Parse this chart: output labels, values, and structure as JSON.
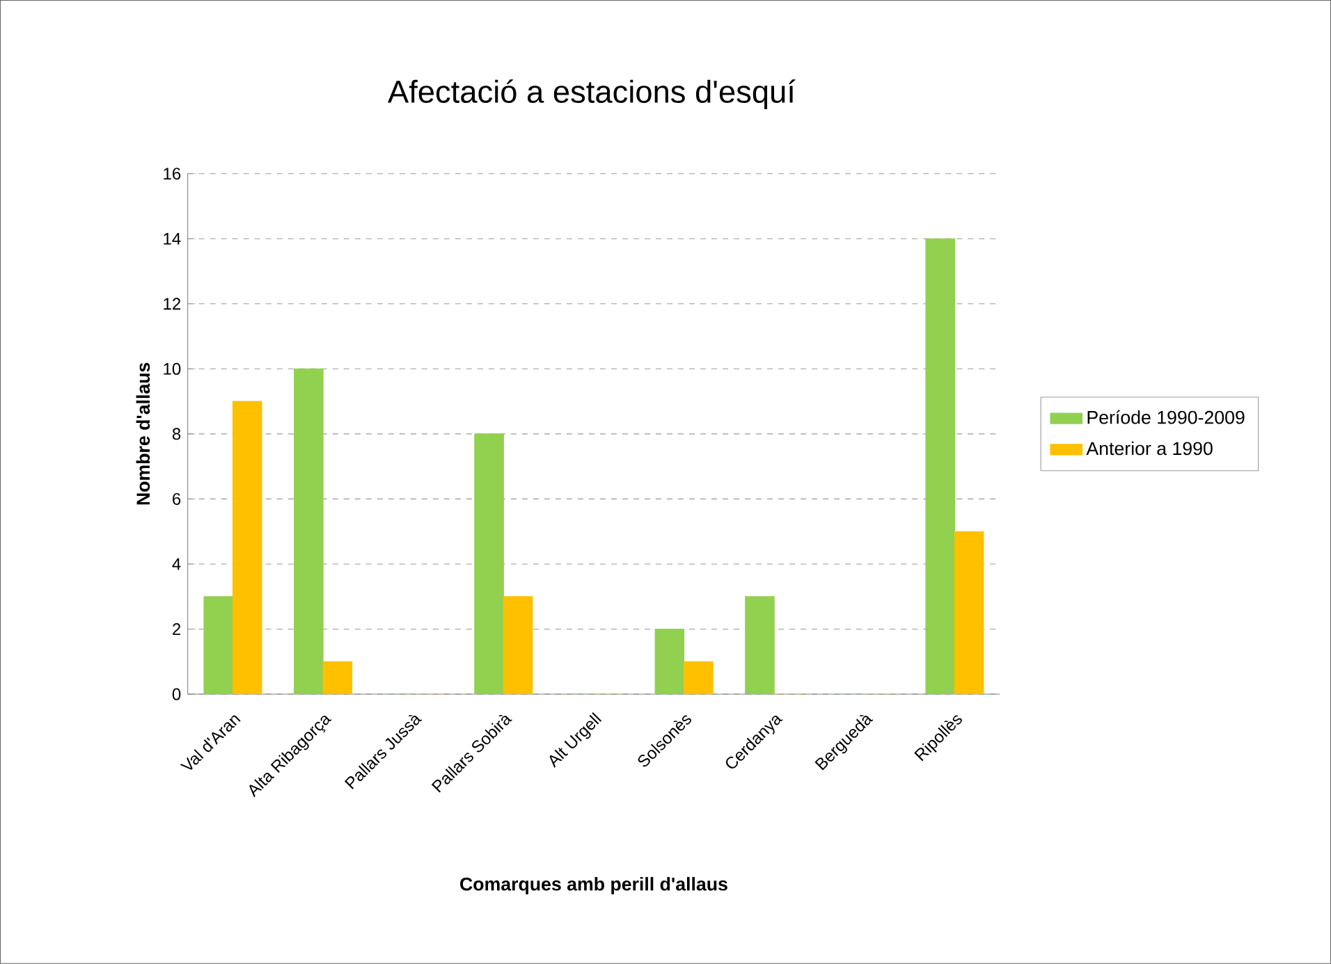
{
  "chart_data": {
    "type": "bar",
    "title": "Afectació a estacions d'esquí",
    "xlabel": "Comarques amb perill d'allaus",
    "ylabel": "Nombre d'allaus",
    "categories": [
      "Val d'Aran",
      "Alta Ribagorça",
      "Pallars Jussà",
      "Pallars Sobirà",
      "Alt Urgell",
      "Solsonès",
      "Cerdanya",
      "Berguedà",
      "Ripollès"
    ],
    "series": [
      {
        "name": "Període 1990-2009",
        "color": "#92d050",
        "values": [
          3,
          10,
          0,
          8,
          0,
          2,
          3,
          0,
          14
        ]
      },
      {
        "name": "Anterior a 1990",
        "color": "#ffc000",
        "values": [
          9,
          1,
          0,
          3,
          0,
          1,
          0,
          0,
          5
        ]
      }
    ],
    "ylim": [
      0,
      16
    ],
    "yticks": [
      0,
      2,
      4,
      6,
      8,
      10,
      12,
      14,
      16
    ],
    "grid": "y",
    "legend": "right"
  }
}
